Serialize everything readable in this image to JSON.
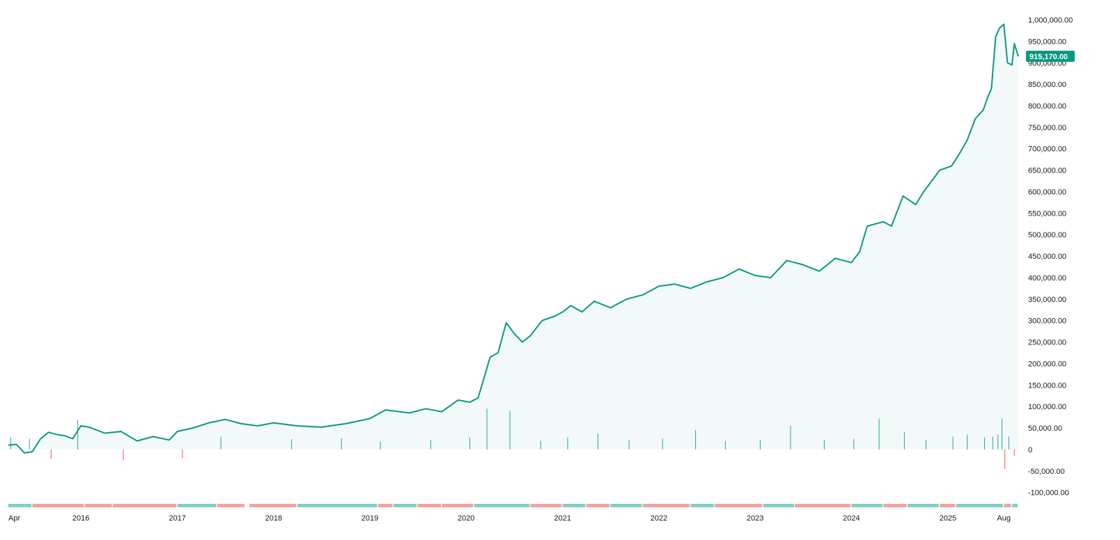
{
  "chart_data": {
    "type": "area",
    "title": "",
    "xlabel": "",
    "ylabel": "",
    "last_price_label": "915,170.00",
    "last_price": 915170,
    "colors": {
      "line": "#089981",
      "area_fill": "#f2f9f8",
      "up": "#26a69a",
      "down": "#ef5350",
      "up_soft": "#7fd1c4",
      "down_soft": "#f4a3a1",
      "tag_bg": "#089981"
    },
    "ylim": [
      -120000,
      1030000
    ],
    "y_tick_values": [
      1000000,
      950000,
      900000,
      850000,
      800000,
      750000,
      700000,
      650000,
      600000,
      550000,
      500000,
      450000,
      400000,
      350000,
      300000,
      250000,
      200000,
      150000,
      100000,
      50000,
      0,
      -50000,
      -100000
    ],
    "y_tick_labels": [
      "1,000,000.00",
      "950,000.00",
      "900,000.00",
      "850,000.00",
      "800,000.00",
      "750,000.00",
      "700,000.00",
      "650,000.00",
      "600,000.00",
      "550,000.00",
      "500,000.00",
      "450,000.00",
      "400,000.00",
      "350,000.00",
      "300,000.00",
      "250,000.00",
      "200,000.00",
      "150,000.00",
      "100,000.00",
      "50,000.00",
      "0",
      "-50,000.00",
      "-100,000.00"
    ],
    "x_range": [
      "2015-04-01",
      "2025-09-25"
    ],
    "x_ticks": [
      {
        "date": "2015-04-01",
        "label": "Apr"
      },
      {
        "date": "2016-01-01",
        "label": "2016"
      },
      {
        "date": "2017-01-01",
        "label": "2017"
      },
      {
        "date": "2018-01-01",
        "label": "2018"
      },
      {
        "date": "2019-01-01",
        "label": "2019"
      },
      {
        "date": "2020-01-01",
        "label": "2020"
      },
      {
        "date": "2021-01-01",
        "label": "2021"
      },
      {
        "date": "2022-01-01",
        "label": "2022"
      },
      {
        "date": "2023-01-01",
        "label": "2023"
      },
      {
        "date": "2024-01-01",
        "label": "2024"
      },
      {
        "date": "2025-01-01",
        "label": "2025"
      },
      {
        "date": "2025-08-01",
        "label": "Aug"
      }
    ],
    "series": [
      {
        "x": [
          "2015-04-01",
          "2015-05-01",
          "2015-06-01",
          "2015-07-01",
          "2015-08-01",
          "2015-09-01",
          "2015-10-01",
          "2015-11-01",
          "2015-12-01",
          "2016-01-01",
          "2016-02-01",
          "2016-04-01",
          "2016-06-01",
          "2016-08-01",
          "2016-10-01",
          "2016-12-01",
          "2017-01-01",
          "2017-03-01",
          "2017-05-01",
          "2017-07-01",
          "2017-09-01",
          "2017-11-01",
          "2018-01-01",
          "2018-04-01",
          "2018-07-01",
          "2018-10-01",
          "2019-01-01",
          "2019-03-01",
          "2019-06-01",
          "2019-08-01",
          "2019-10-01",
          "2019-12-01",
          "2020-01-15",
          "2020-02-15",
          "2020-03-01",
          "2020-04-01",
          "2020-05-01",
          "2020-06-01",
          "2020-07-01",
          "2020-08-01",
          "2020-09-01",
          "2020-10-15",
          "2020-12-01",
          "2021-01-01",
          "2021-02-01",
          "2021-03-15",
          "2021-05-01",
          "2021-07-01",
          "2021-09-01",
          "2021-11-01",
          "2022-01-01",
          "2022-03-01",
          "2022-05-01",
          "2022-07-01",
          "2022-09-01",
          "2022-11-01",
          "2023-01-01",
          "2023-03-01",
          "2023-05-01",
          "2023-07-01",
          "2023-09-01",
          "2023-11-01",
          "2024-01-01",
          "2024-02-01",
          "2024-03-01",
          "2024-05-01",
          "2024-06-01",
          "2024-07-15",
          "2024-09-01",
          "2024-10-01",
          "2024-12-01",
          "2025-01-15",
          "2025-02-15",
          "2025-03-15",
          "2025-04-15",
          "2025-05-15",
          "2025-06-01",
          "2025-06-15",
          "2025-07-01",
          "2025-07-15",
          "2025-08-01",
          "2025-08-15",
          "2025-09-01",
          "2025-09-10",
          "2025-09-25"
        ],
        "y": [
          10000,
          12000,
          -8000,
          -5000,
          25000,
          40000,
          35000,
          32000,
          25000,
          55000,
          52000,
          38000,
          42000,
          20000,
          30000,
          22000,
          42000,
          50000,
          62000,
          70000,
          60000,
          55000,
          62000,
          55000,
          52000,
          60000,
          72000,
          92000,
          85000,
          95000,
          88000,
          115000,
          110000,
          120000,
          150000,
          215000,
          225000,
          295000,
          270000,
          250000,
          265000,
          300000,
          310000,
          320000,
          335000,
          320000,
          345000,
          330000,
          350000,
          360000,
          380000,
          385000,
          375000,
          390000,
          400000,
          420000,
          405000,
          400000,
          440000,
          430000,
          415000,
          445000,
          435000,
          460000,
          520000,
          530000,
          520000,
          590000,
          570000,
          600000,
          650000,
          660000,
          690000,
          720000,
          770000,
          790000,
          820000,
          840000,
          960000,
          980000,
          990000,
          900000,
          895000,
          945000,
          915000
        ]
      }
    ],
    "volume": {
      "x": [
        "2015-04-10",
        "2015-06-20",
        "2015-09-10",
        "2015-12-20",
        "2016-06-10",
        "2017-01-20",
        "2017-06-15",
        "2018-03-10",
        "2018-09-15",
        "2019-02-10",
        "2019-08-20",
        "2020-01-15",
        "2020-03-20",
        "2020-06-15",
        "2020-10-10",
        "2021-01-20",
        "2021-05-15",
        "2021-09-10",
        "2022-01-15",
        "2022-05-20",
        "2022-09-10",
        "2023-01-20",
        "2023-05-15",
        "2023-09-20",
        "2024-01-10",
        "2024-04-15",
        "2024-07-20",
        "2024-10-10",
        "2025-01-20",
        "2025-03-15",
        "2025-05-20",
        "2025-06-20",
        "2025-07-10",
        "2025-07-25",
        "2025-08-05",
        "2025-08-20",
        "2025-09-10"
      ],
      "y": [
        28000,
        25000,
        -22000,
        68000,
        -25000,
        -20000,
        30000,
        24000,
        26000,
        18000,
        22000,
        28000,
        95000,
        90000,
        20000,
        28000,
        38000,
        22000,
        25000,
        45000,
        20000,
        22000,
        55000,
        22000,
        25000,
        72000,
        40000,
        22000,
        30000,
        35000,
        28000,
        30000,
        35000,
        72000,
        -45000,
        30000,
        -15000
      ]
    },
    "period_strip": [
      {
        "from": "2015-04-01",
        "to": "2015-06-30",
        "dir": "up"
      },
      {
        "from": "2015-07-01",
        "to": "2016-01-15",
        "dir": "down"
      },
      {
        "from": "2016-01-16",
        "to": "2016-04-30",
        "dir": "down"
      },
      {
        "from": "2016-05-01",
        "to": "2016-12-31",
        "dir": "down"
      },
      {
        "from": "2017-01-01",
        "to": "2017-05-31",
        "dir": "up"
      },
      {
        "from": "2017-06-01",
        "to": "2017-09-15",
        "dir": "down"
      },
      {
        "from": "2017-10-01",
        "to": "2018-03-31",
        "dir": "down"
      },
      {
        "from": "2018-04-01",
        "to": "2019-01-31",
        "dir": "up"
      },
      {
        "from": "2019-02-01",
        "to": "2019-03-31",
        "dir": "down"
      },
      {
        "from": "2019-04-01",
        "to": "2019-06-30",
        "dir": "up"
      },
      {
        "from": "2019-07-01",
        "to": "2019-09-30",
        "dir": "down"
      },
      {
        "from": "2019-10-01",
        "to": "2020-01-31",
        "dir": "down"
      },
      {
        "from": "2020-02-01",
        "to": "2020-08-31",
        "dir": "up"
      },
      {
        "from": "2020-09-01",
        "to": "2020-12-31",
        "dir": "down"
      },
      {
        "from": "2021-01-01",
        "to": "2021-03-31",
        "dir": "up"
      },
      {
        "from": "2021-04-01",
        "to": "2021-06-30",
        "dir": "down"
      },
      {
        "from": "2021-07-01",
        "to": "2021-10-31",
        "dir": "up"
      },
      {
        "from": "2021-11-01",
        "to": "2022-04-30",
        "dir": "down"
      },
      {
        "from": "2022-05-01",
        "to": "2022-07-31",
        "dir": "up"
      },
      {
        "from": "2022-08-01",
        "to": "2023-01-31",
        "dir": "down"
      },
      {
        "from": "2023-02-01",
        "to": "2023-05-31",
        "dir": "up"
      },
      {
        "from": "2023-06-01",
        "to": "2023-12-31",
        "dir": "down"
      },
      {
        "from": "2024-01-01",
        "to": "2024-04-30",
        "dir": "up"
      },
      {
        "from": "2024-05-01",
        "to": "2024-07-31",
        "dir": "down"
      },
      {
        "from": "2024-08-01",
        "to": "2024-11-30",
        "dir": "up"
      },
      {
        "from": "2024-12-01",
        "to": "2025-01-31",
        "dir": "down"
      },
      {
        "from": "2025-02-01",
        "to": "2025-07-31",
        "dir": "up"
      },
      {
        "from": "2025-08-01",
        "to": "2025-08-31",
        "dir": "down"
      },
      {
        "from": "2025-09-01",
        "to": "2025-09-25",
        "dir": "up"
      }
    ]
  }
}
